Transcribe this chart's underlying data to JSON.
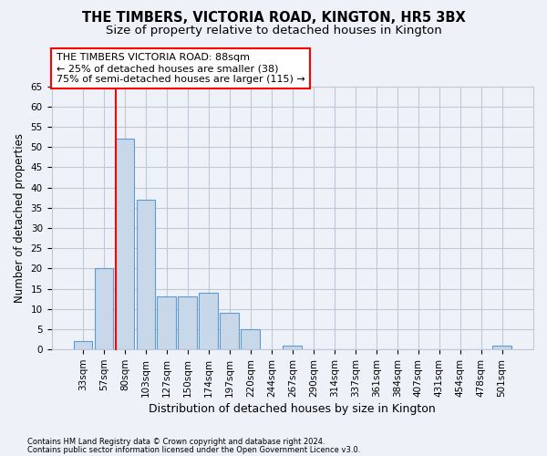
{
  "title": "THE TIMBERS, VICTORIA ROAD, KINGTON, HR5 3BX",
  "subtitle": "Size of property relative to detached houses in Kington",
  "xlabel": "Distribution of detached houses by size in Kington",
  "ylabel": "Number of detached properties",
  "footnote1": "Contains HM Land Registry data © Crown copyright and database right 2024.",
  "footnote2": "Contains public sector information licensed under the Open Government Licence v3.0.",
  "bins": [
    "33sqm",
    "57sqm",
    "80sqm",
    "103sqm",
    "127sqm",
    "150sqm",
    "174sqm",
    "197sqm",
    "220sqm",
    "244sqm",
    "267sqm",
    "290sqm",
    "314sqm",
    "337sqm",
    "361sqm",
    "384sqm",
    "407sqm",
    "431sqm",
    "454sqm",
    "478sqm",
    "501sqm"
  ],
  "values": [
    2,
    20,
    52,
    37,
    13,
    13,
    14,
    9,
    5,
    0,
    1,
    0,
    0,
    0,
    0,
    0,
    0,
    0,
    0,
    0,
    1
  ],
  "bar_color": "#c8d8e8",
  "bar_edge_color": "#5b9bd5",
  "grid_color": "#c0c8d8",
  "background_color": "#eef2f8",
  "annotation_line1": "THE TIMBERS VICTORIA ROAD: 88sqm",
  "annotation_line2": "← 25% of detached houses are smaller (38)",
  "annotation_line3": "75% of semi-detached houses are larger (115) →",
  "annotation_box_color": "white",
  "annotation_box_edge": "red",
  "red_line_bin_index": 2,
  "ylim": [
    0,
    65
  ],
  "yticks": [
    0,
    5,
    10,
    15,
    20,
    25,
    30,
    35,
    40,
    45,
    50,
    55,
    60,
    65
  ],
  "title_fontsize": 10.5,
  "subtitle_fontsize": 9.5,
  "annotation_fontsize": 8.0,
  "ylabel_fontsize": 8.5,
  "xlabel_fontsize": 9.0,
  "tick_fontsize": 7.5
}
